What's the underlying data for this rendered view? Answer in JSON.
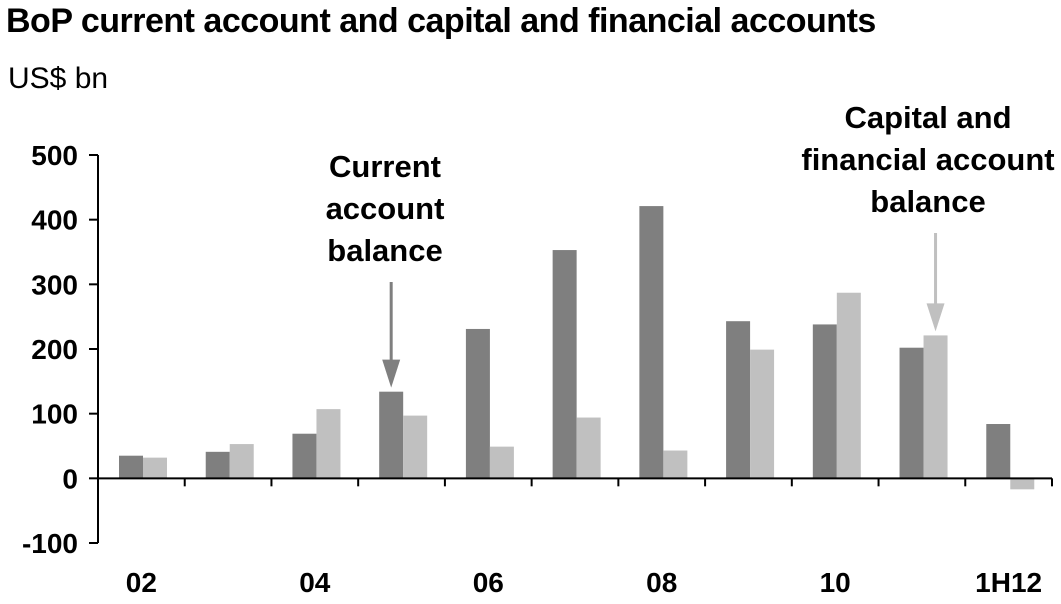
{
  "header": {
    "title": "BoP current account and capital and financial accounts",
    "subtitle": "US$ bn"
  },
  "colors": {
    "current_account": "#7f7f7f",
    "capital_financial": "#c0c0c0",
    "axis": "#000000"
  },
  "chart_data": {
    "type": "bar",
    "title": "BoP current account and capital and financial accounts",
    "ylabel": "US$ bn",
    "ylim": [
      -100,
      500
    ],
    "yticks": [
      "500",
      "400",
      "300",
      "200",
      "100",
      "0",
      "-100"
    ],
    "ytick_values": [
      500,
      400,
      300,
      200,
      100,
      0,
      -100
    ],
    "categories": [
      "02",
      "03",
      "04",
      "05",
      "06",
      "07",
      "08",
      "09",
      "10",
      "11",
      "1H12"
    ],
    "xtick_labels": [
      "02",
      "",
      "04",
      "",
      "06",
      "",
      "08",
      "",
      "10",
      "",
      "1H12"
    ],
    "grid": false,
    "series": [
      {
        "key": "current_account",
        "values": [
          35,
          41,
          69,
          134,
          231,
          353,
          421,
          243,
          238,
          202,
          84
        ]
      },
      {
        "key": "capital_financial",
        "values": [
          32,
          53,
          107,
          97,
          49,
          94,
          43,
          199,
          287,
          221,
          -17
        ]
      }
    ],
    "annotations": [
      {
        "lines": [
          "Current",
          "account",
          "balance"
        ],
        "series": "current_account",
        "category": "05"
      },
      {
        "lines": [
          "Capital and",
          "financial account",
          "balance"
        ],
        "series": "capital_financial",
        "category": "11"
      }
    ]
  }
}
